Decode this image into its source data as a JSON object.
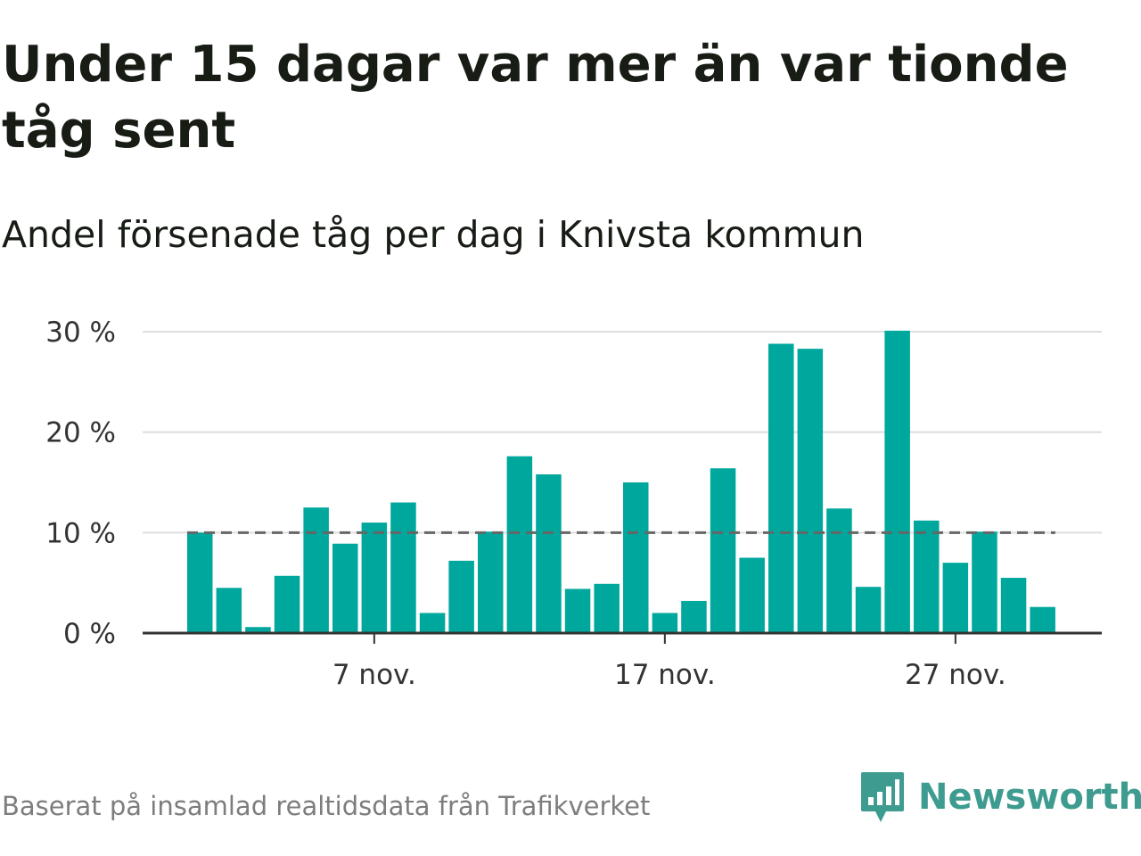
{
  "title": "Under 15 dagar var mer än var tionde tåg sent",
  "subtitle": "Andel försenade tåg per dag i Knivsta kommun",
  "source": "Baserat på insamlad realtidsdata från Trafikverket",
  "brand": {
    "name": "Newsworthy",
    "logo_icon": "bar-chart-speech-bubble-icon"
  },
  "colors": {
    "bar": "#00a79d",
    "title": "#171c15",
    "grid": "#dddddd",
    "axis": "#333333",
    "reference_line": "#666666",
    "brand": "#3e9b8f",
    "source": "#7d7d7d"
  },
  "chart_data": {
    "type": "bar",
    "x_start": "2023-11-01",
    "x_end": "2023-11-30",
    "categories": [
      "1 nov.",
      "2 nov.",
      "3 nov.",
      "4 nov.",
      "5 nov.",
      "6 nov.",
      "7 nov.",
      "8 nov.",
      "9 nov.",
      "10 nov.",
      "11 nov.",
      "12 nov.",
      "13 nov.",
      "14 nov.",
      "15 nov.",
      "16 nov.",
      "17 nov.",
      "18 nov.",
      "19 nov.",
      "20 nov.",
      "21 nov.",
      "22 nov.",
      "23 nov.",
      "24 nov.",
      "25 nov.",
      "26 nov.",
      "27 nov.",
      "28 nov.",
      "29 nov.",
      "30 nov."
    ],
    "values": [
      10,
      4.5,
      0.6,
      5.7,
      12.5,
      8.9,
      11,
      13,
      2,
      7.2,
      10.1,
      17.6,
      15.8,
      4.4,
      4.9,
      15,
      2,
      3.2,
      16.4,
      7.5,
      28.8,
      28.3,
      12.4,
      4.6,
      30.1,
      11.2,
      7,
      10.1,
      5.5,
      2.6
    ],
    "xticks": [
      "7 nov.",
      "17 nov.",
      "27 nov."
    ],
    "yticks": [
      "0 %",
      "10 %",
      "20 %",
      "30 %"
    ],
    "ylim": [
      0,
      30
    ],
    "reference_line": 10,
    "grid": true,
    "legend": false
  }
}
